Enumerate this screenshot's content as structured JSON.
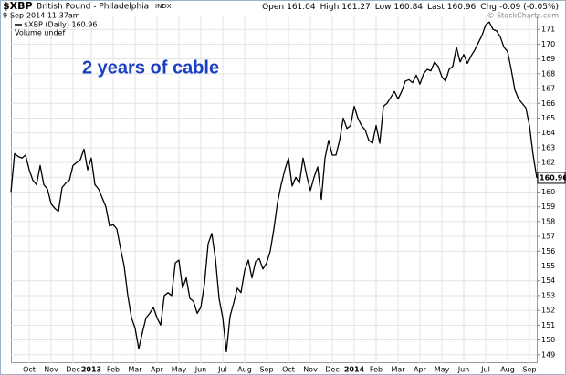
{
  "chart_data": {
    "type": "line",
    "symbol": "$XBP",
    "name": "British Pound - Philadelphia",
    "exchange": "INDX",
    "date": "9-Sep-2014 11:37am",
    "quote": [
      {
        "label": "Open",
        "value": "161.04"
      },
      {
        "label": "High",
        "value": "161.27"
      },
      {
        "label": "Low",
        "value": "160.84"
      },
      {
        "label": "Last",
        "value": "160.96"
      },
      {
        "label": "Chg",
        "value": "-0.09 (-0.05%)"
      }
    ],
    "credit": "© StockCharts.com",
    "annotation": "2 years of cable",
    "legend": [
      "$XBP (Daily) 160.96",
      "Volume undef"
    ],
    "color": "#000000",
    "annotation_color": "#1a3fc4",
    "grid": true,
    "ylim": [
      148.43,
      171.94
    ],
    "yticks": [
      149,
      150,
      151,
      152,
      153,
      154,
      155,
      156,
      157,
      158,
      159,
      160,
      161,
      162,
      163,
      164,
      165,
      166,
      167,
      168,
      169,
      170,
      171
    ],
    "categories": [
      null,
      null,
      null,
      null,
      null,
      "Oct",
      null,
      null,
      null,
      null,
      null,
      "Nov",
      null,
      null,
      null,
      null,
      null,
      "Dec",
      null,
      null,
      null,
      null,
      "2013",
      null,
      null,
      null,
      null,
      null,
      "Feb",
      null,
      null,
      null,
      null,
      null,
      "Mar",
      null,
      null,
      null,
      null,
      null,
      "Apr",
      null,
      null,
      null,
      null,
      null,
      "May",
      null,
      null,
      null,
      null,
      null,
      "Jun",
      null,
      null,
      null,
      null,
      null,
      "Jul",
      null,
      null,
      null,
      null,
      null,
      "Aug",
      null,
      null,
      null,
      null,
      null,
      "Sep",
      null,
      null,
      null,
      null,
      null,
      "Oct",
      null,
      null,
      null,
      null,
      null,
      "Nov",
      null,
      null,
      null,
      null,
      null,
      "Dec",
      null,
      null,
      null,
      null,
      null,
      "2014",
      null,
      null,
      null,
      null,
      null,
      "Feb",
      null,
      null,
      null,
      null,
      null,
      "Mar",
      null,
      null,
      null,
      null,
      null,
      "Apr",
      null,
      null,
      null,
      null,
      null,
      "May",
      null,
      null,
      null,
      null,
      null,
      "Jun",
      null,
      null,
      null,
      null,
      null,
      "Jul",
      null,
      null,
      null,
      null,
      null,
      "Aug",
      null,
      null,
      null,
      null,
      null,
      "Sep",
      null,
      null
    ],
    "values": [
      160.0,
      162.6,
      162.4,
      162.3,
      162.5,
      161.5,
      160.8,
      160.5,
      161.8,
      160.5,
      160.2,
      159.2,
      158.9,
      158.7,
      160.3,
      160.6,
      160.8,
      161.8,
      162.0,
      162.2,
      162.9,
      161.5,
      162.3,
      160.5,
      160.2,
      159.6,
      159.0,
      157.7,
      157.8,
      157.5,
      156.2,
      155.0,
      153.0,
      151.5,
      150.8,
      149.4,
      150.5,
      151.5,
      151.8,
      152.2,
      151.5,
      151.0,
      153.0,
      153.2,
      153.0,
      155.2,
      155.4,
      153.5,
      154.2,
      152.8,
      152.6,
      151.8,
      152.2,
      153.8,
      156.5,
      157.2,
      155.5,
      152.8,
      151.5,
      149.2,
      151.6,
      152.5,
      153.5,
      153.2,
      154.7,
      155.4,
      154.2,
      155.3,
      155.5,
      154.8,
      155.2,
      156.0,
      157.5,
      159.3,
      160.5,
      161.5,
      162.3,
      160.4,
      161.0,
      160.6,
      162.3,
      161.1,
      160.1,
      161.0,
      161.7,
      159.5,
      162.3,
      163.5,
      162.5,
      162.5,
      163.5,
      165.0,
      164.3,
      164.5,
      165.8,
      165.0,
      164.5,
      164.2,
      163.5,
      163.3,
      164.5,
      163.3,
      165.8,
      166.0,
      166.4,
      166.8,
      166.3,
      166.8,
      167.5,
      167.6,
      167.4,
      167.9,
      167.3,
      168.0,
      168.3,
      168.2,
      168.8,
      168.5,
      167.8,
      167.5,
      168.3,
      168.5,
      169.8,
      168.8,
      169.3,
      168.7,
      169.2,
      169.6,
      170.1,
      170.6,
      171.3,
      171.5,
      171.0,
      170.9,
      170.5,
      169.8,
      169.5,
      168.3,
      166.9,
      166.3,
      166.0,
      165.7,
      164.5,
      162.5,
      160.96
    ]
  }
}
